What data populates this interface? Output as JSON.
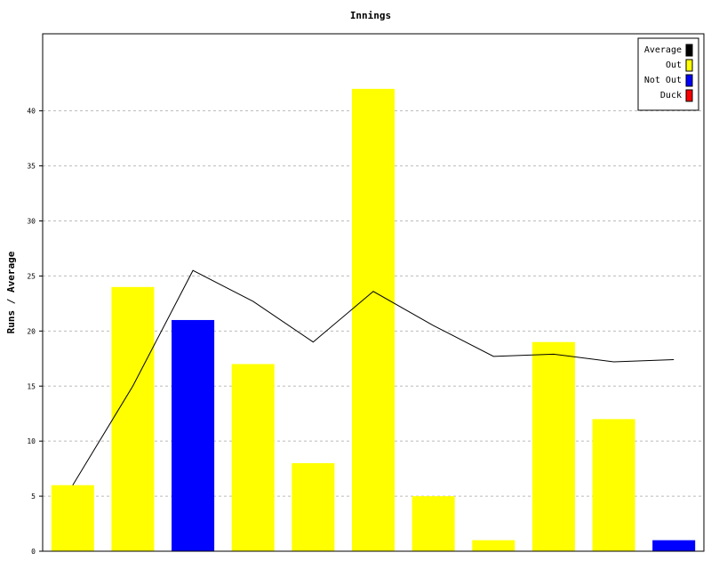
{
  "chart_data": {
    "type": "bar",
    "title": "Innings",
    "xlabel": "",
    "ylabel": "Runs / Average",
    "ylim": [
      0,
      47
    ],
    "yticks": [
      0,
      5,
      10,
      15,
      20,
      25,
      30,
      35,
      40
    ],
    "grid": true,
    "legend_position": "top-right",
    "legend": [
      {
        "name": "Average",
        "color": "#000000"
      },
      {
        "name": "Out",
        "color": "#ffff00"
      },
      {
        "name": "Not Out",
        "color": "#0000ff"
      },
      {
        "name": "Duck",
        "color": "#ff0000"
      }
    ],
    "bars": [
      {
        "value": 6,
        "status": "Out"
      },
      {
        "value": 24,
        "status": "Out"
      },
      {
        "value": 21,
        "status": "Not Out"
      },
      {
        "value": 17,
        "status": "Out"
      },
      {
        "value": 8,
        "status": "Out"
      },
      {
        "value": 42,
        "status": "Out"
      },
      {
        "value": 5,
        "status": "Out"
      },
      {
        "value": 1,
        "status": "Out"
      },
      {
        "value": 19,
        "status": "Out"
      },
      {
        "value": 12,
        "status": "Out"
      },
      {
        "value": 1,
        "status": "Not Out"
      }
    ],
    "average_line": [
      6,
      15,
      25.5,
      22.7,
      19,
      23.6,
      20.5,
      17.7,
      17.9,
      17.2,
      17.4
    ]
  }
}
